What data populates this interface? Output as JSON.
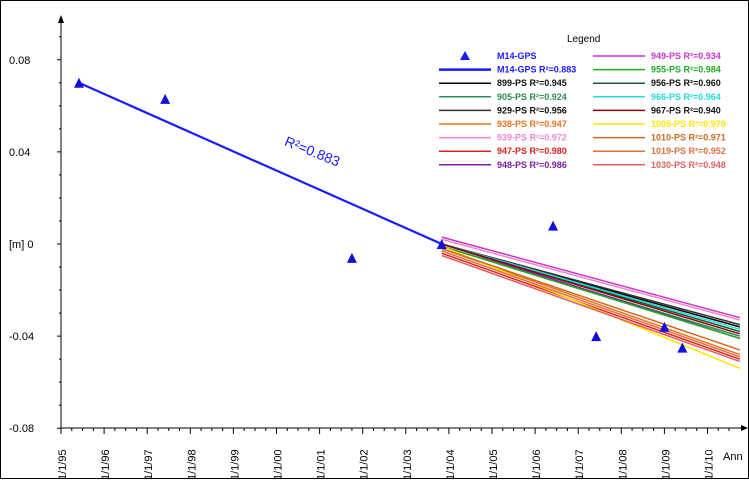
{
  "chart_data": {
    "type": "scatter",
    "title": "",
    "xlabel": "Ann",
    "ylabel": "[m]",
    "xlim": [
      "1/1/95",
      "1/1/10"
    ],
    "ylim": [
      -0.08,
      0.09
    ],
    "x_ticks": [
      "1/1/95",
      "1/1/96",
      "1/1/97",
      "1/1/98",
      "1/1/99",
      "1/1/00",
      "1/1/01",
      "1/1/02",
      "1/1/03",
      "1/1/04",
      "1/1/05",
      "1/1/06",
      "1/1/07",
      "1/1/08",
      "1/1/09",
      "1/1/10"
    ],
    "y_ticks": [
      "0.08",
      "0.04",
      "0",
      "-0.04",
      "-0.08"
    ],
    "y_tick_values": [
      0.08,
      0.04,
      0,
      -0.04,
      -0.08
    ],
    "annotation": "R²=0.883",
    "legend": {
      "title": "Legend",
      "position": "top-right",
      "entries": [
        {
          "label": "M14-GPS",
          "color": "#1a1aff",
          "marker": "triangle"
        },
        {
          "label": "M14-GPS R²=0.883",
          "color": "#1a1aff"
        },
        {
          "label": "899-PS R²=0.945",
          "color": "#000000"
        },
        {
          "label": "905-PS R²=0.924",
          "color": "#2e8b57"
        },
        {
          "label": "929-PS R²=0.956",
          "color": "#333333"
        },
        {
          "label": "938-PS R²=0.947",
          "color": "#e8741f"
        },
        {
          "label": "939-PS R²=0.972",
          "color": "#ee88cc"
        },
        {
          "label": "947-PS R²=0.980",
          "color": "#e02020"
        },
        {
          "label": "948-PS R²=0.986",
          "color": "#8020a0"
        },
        {
          "label": "949-PS R²=0.934",
          "color": "#cc33cc"
        },
        {
          "label": "955-PS R²=0.984",
          "color": "#22aa22"
        },
        {
          "label": "956-PS R²=0.960",
          "color": "#1a5a3a"
        },
        {
          "label": "966-PS R²=0.964",
          "color": "#22dddd"
        },
        {
          "label": "967-PS R²=0.940",
          "color": "#8b0000"
        },
        {
          "label": "1005-PS R²=0.979",
          "color": "#ffe600"
        },
        {
          "label": "1010-PS R²=0.971",
          "color": "#d2691e"
        },
        {
          "label": "1019-PS R²=0.952",
          "color": "#e07040"
        },
        {
          "label": "1030-PS R²=0.948",
          "color": "#e06060"
        }
      ]
    },
    "gps_points": [
      {
        "x": "1995-06",
        "y": 0.07
      },
      {
        "x": "1997-06",
        "y": 0.063
      },
      {
        "x": "2001-10",
        "y": -0.006
      },
      {
        "x": "2003-11",
        "y": 0.0
      },
      {
        "x": "2006-06",
        "y": 0.008
      },
      {
        "x": "2007-06",
        "y": -0.04
      },
      {
        "x": "2009-01",
        "y": -0.036
      },
      {
        "x": "2009-06",
        "y": -0.045
      }
    ],
    "gps_fit": {
      "name": "M14-GPS R²=0.883",
      "x": [
        "1995-06",
        "2003-11"
      ],
      "y": [
        0.07,
        0.0
      ]
    },
    "ps_fits": [
      {
        "name": "899-PS R²=0.945",
        "x": [
          "2003-11",
          "2010-10"
        ],
        "y": [
          0.0,
          -0.036
        ]
      },
      {
        "name": "905-PS R²=0.924",
        "x": [
          "2003-11",
          "2010-10"
        ],
        "y": [
          -0.001,
          -0.04
        ]
      },
      {
        "name": "929-PS R²=0.956",
        "x": [
          "2003-11",
          "2010-10"
        ],
        "y": [
          0.0,
          -0.035
        ]
      },
      {
        "name": "938-PS R²=0.947",
        "x": [
          "2003-11",
          "2010-10"
        ],
        "y": [
          -0.002,
          -0.048
        ]
      },
      {
        "name": "939-PS R²=0.972",
        "x": [
          "2003-11",
          "2010-10"
        ],
        "y": [
          0.002,
          -0.033
        ]
      },
      {
        "name": "947-PS R²=0.980",
        "x": [
          "2003-11",
          "2010-10"
        ],
        "y": [
          -0.004,
          -0.05
        ]
      },
      {
        "name": "948-PS R²=0.986",
        "x": [
          "2003-11",
          "2010-10"
        ],
        "y": [
          0.0,
          -0.041
        ]
      },
      {
        "name": "949-PS R²=0.934",
        "x": [
          "2003-11",
          "2010-10"
        ],
        "y": [
          0.003,
          -0.032
        ]
      },
      {
        "name": "955-PS R²=0.984",
        "x": [
          "2003-11",
          "2010-10"
        ],
        "y": [
          -0.001,
          -0.041
        ]
      },
      {
        "name": "956-PS R²=0.960",
        "x": [
          "2003-11",
          "2010-10"
        ],
        "y": [
          0.0,
          -0.038
        ]
      },
      {
        "name": "966-PS R²=0.964",
        "x": [
          "2003-11",
          "2010-10"
        ],
        "y": [
          0.0,
          -0.037
        ]
      },
      {
        "name": "967-PS R²=0.940",
        "x": [
          "2003-11",
          "2010-10"
        ],
        "y": [
          0.0,
          -0.039
        ]
      },
      {
        "name": "1005-PS R²=0.979",
        "x": [
          "2003-11",
          "2010-10"
        ],
        "y": [
          -0.001,
          -0.054
        ]
      },
      {
        "name": "1010-PS R²=0.971",
        "x": [
          "2003-11",
          "2010-10"
        ],
        "y": [
          -0.002,
          -0.046
        ]
      },
      {
        "name": "1019-PS R²=0.952",
        "x": [
          "2003-11",
          "2010-10"
        ],
        "y": [
          -0.003,
          -0.049
        ]
      },
      {
        "name": "1030-PS R²=0.948",
        "x": [
          "2003-11",
          "2010-10"
        ],
        "y": [
          -0.005,
          -0.051
        ]
      }
    ]
  }
}
